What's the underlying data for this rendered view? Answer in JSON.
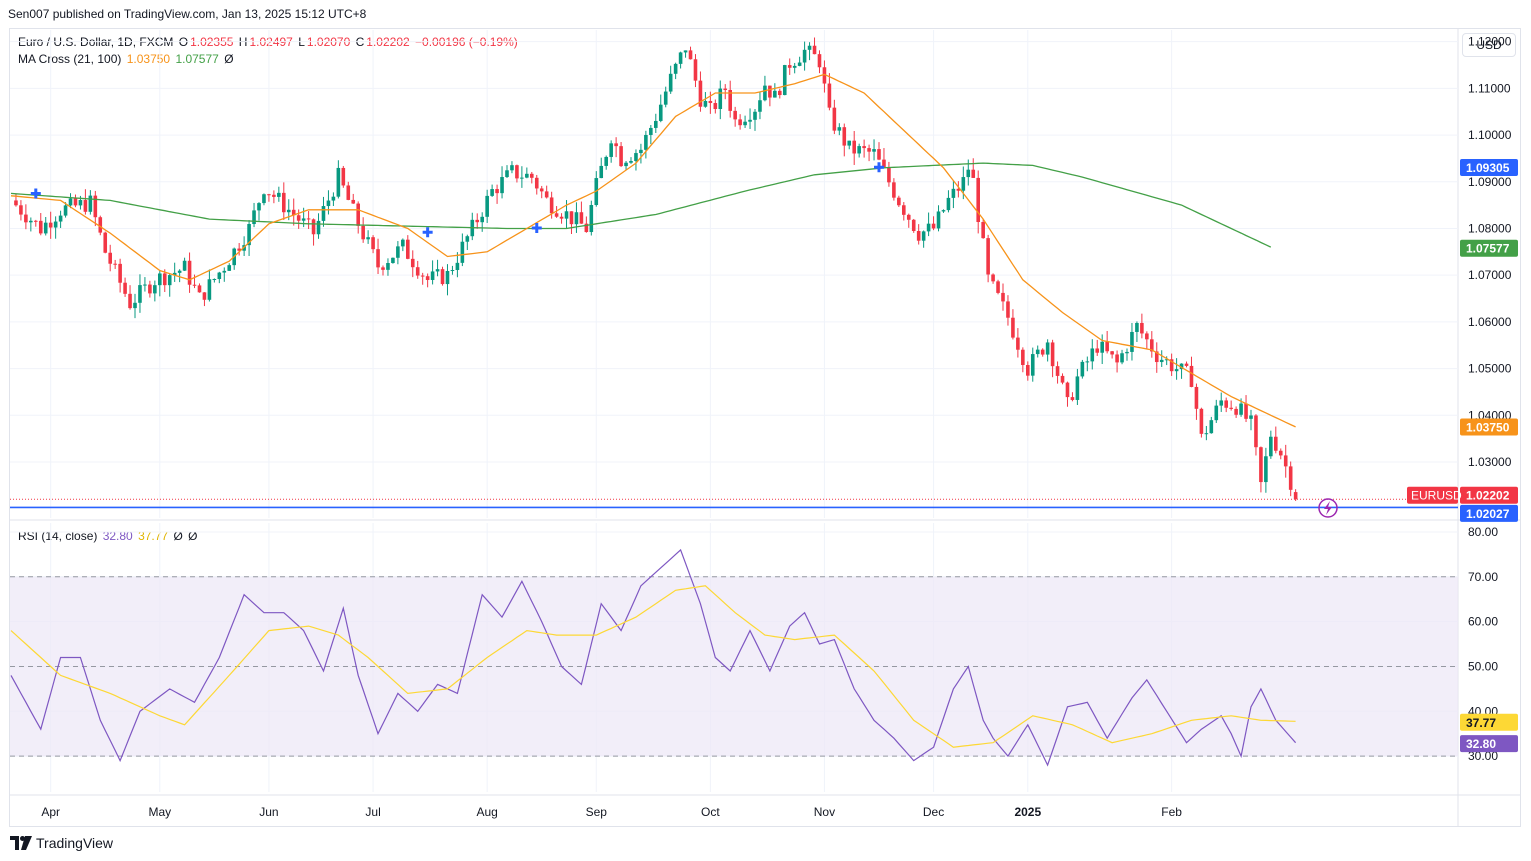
{
  "attribution": "Sen007 published on TradingView.com, Jan 13, 2025 15:12 UTC+8",
  "price_legend": {
    "symbol": "Euro / U.S. Dollar, 1D, FXCM",
    "o_label": "O",
    "o": "1.02355",
    "h_label": "H",
    "h": "1.02497",
    "l_label": "L",
    "l": "1.02070",
    "c_label": "C",
    "c": "1.02202",
    "change": "−0.00196 (−0.19%)"
  },
  "ma_legend": {
    "label": "MA Cross (21, 100)",
    "fast": "1.03750",
    "slow": "1.07577",
    "extra": "Ø"
  },
  "rsi_legend": {
    "label": "RSI (14, close)",
    "rsi": "32.80",
    "ma": "37.77",
    "extra1": "Ø",
    "extra2": "Ø"
  },
  "currency_button": "USD",
  "logo": "TradingView",
  "colors": {
    "up": "#089981",
    "down": "#f23645",
    "ma_fast": "#f7931a",
    "ma_slow": "#43a047",
    "rsi": "#7e57c2",
    "rsi_ma": "#fdd835",
    "line": "#2962ff",
    "band": "#ede7f6"
  },
  "chart_data": [
    {
      "type": "candlestick",
      "title": "Euro / U.S. Dollar, 1D, FXCM",
      "yaxis_ticks": [
        "1.12000",
        "1.11000",
        "1.10000",
        "1.09000",
        "1.08000",
        "1.07000",
        "1.06000",
        "1.05000",
        "1.04000",
        "1.03000"
      ],
      "ylim": [
        1.018,
        1.1225
      ],
      "x_ticks": [
        "Apr",
        "May",
        "Jun",
        "Jul",
        "Aug",
        "Sep",
        "Oct",
        "Nov",
        "Dec",
        "2025",
        "Feb"
      ],
      "price_labels": [
        {
          "text": "1.09305",
          "value": 1.09305,
          "color": "#2962ff"
        },
        {
          "text": "1.07577",
          "value": 1.07577,
          "color": "#43a047"
        },
        {
          "text": "1.03750",
          "value": 1.0375,
          "color": "#f7931a"
        },
        {
          "text": "1.02202",
          "value": 1.02202,
          "color": "#f23645",
          "tag": "EURUSD"
        },
        {
          "text": "1.02027",
          "value": 1.02027,
          "color": "#2962ff"
        }
      ],
      "horizontal_line": 1.02027,
      "close_line": 1.02202,
      "close_anchors": [
        [
          0,
          1.086
        ],
        [
          6,
          1.08
        ],
        [
          10,
          1.084
        ],
        [
          16,
          1.0855
        ],
        [
          19,
          1.075
        ],
        [
          24,
          1.064
        ],
        [
          29,
          1.069
        ],
        [
          35,
          1.0715
        ],
        [
          38,
          1.065
        ],
        [
          43,
          1.072
        ],
        [
          48,
          1.08
        ],
        [
          51,
          1.089
        ],
        [
          57,
          1.083
        ],
        [
          61,
          1.079
        ],
        [
          66,
          1.091
        ],
        [
          70,
          1.081
        ],
        [
          74,
          1.072
        ],
        [
          79,
          1.076
        ],
        [
          84,
          1.069
        ],
        [
          88,
          1.07
        ],
        [
          93,
          1.08
        ],
        [
          97,
          1.088
        ],
        [
          101,
          1.092
        ],
        [
          105,
          1.091
        ],
        [
          108,
          1.086
        ],
        [
          112,
          1.083
        ],
        [
          116,
          1.08
        ],
        [
          118,
          1.089
        ],
        [
          121,
          1.1
        ],
        [
          123,
          1.095
        ],
        [
          127,
          1.097
        ],
        [
          130,
          1.104
        ],
        [
          133,
          1.112
        ],
        [
          136,
          1.119
        ],
        [
          139,
          1.108
        ],
        [
          141,
          1.105
        ],
        [
          144,
          1.11
        ],
        [
          146,
          1.103
        ],
        [
          150,
          1.106
        ],
        [
          152,
          1.111
        ],
        [
          154,
          1.108
        ],
        [
          157,
          1.1155
        ],
        [
          160,
          1.118
        ],
        [
          163,
          1.116
        ],
        [
          165,
          1.104
        ],
        [
          169,
          1.097
        ],
        [
          174,
          1.096
        ],
        [
          179,
          1.086
        ],
        [
          183,
          1.079
        ],
        [
          186,
          1.08
        ],
        [
          189,
          1.086
        ],
        [
          192,
          1.09
        ],
        [
          193,
          1.093
        ],
        [
          194,
          1.09
        ],
        [
          197,
          1.069
        ],
        [
          201,
          1.061
        ],
        [
          205,
          1.05
        ],
        [
          209,
          1.056
        ],
        [
          213,
          1.042
        ],
        [
          215,
          1.048
        ],
        [
          219,
          1.055
        ],
        [
          223,
          1.051
        ],
        [
          227,
          1.059
        ],
        [
          231,
          1.053
        ],
        [
          235,
          1.05
        ],
        [
          238,
          1.048
        ],
        [
          240,
          1.035
        ],
        [
          244,
          1.043
        ],
        [
          247,
          1.042
        ],
        [
          250,
          1.038
        ],
        [
          252,
          1.025
        ],
        [
          254,
          1.036
        ],
        [
          256,
          1.032
        ],
        [
          258,
          1.026
        ],
        [
          259,
          1.022
        ]
      ],
      "ma_fast_anchors": [
        [
          0,
          1.087
        ],
        [
          10,
          1.086
        ],
        [
          20,
          1.079
        ],
        [
          30,
          1.071
        ],
        [
          36,
          1.069
        ],
        [
          44,
          1.073
        ],
        [
          52,
          1.081
        ],
        [
          60,
          1.084
        ],
        [
          70,
          1.084
        ],
        [
          80,
          1.08
        ],
        [
          88,
          1.074
        ],
        [
          96,
          1.075
        ],
        [
          104,
          1.08
        ],
        [
          112,
          1.085
        ],
        [
          118,
          1.088
        ],
        [
          126,
          1.094
        ],
        [
          134,
          1.104
        ],
        [
          142,
          1.109
        ],
        [
          150,
          1.109
        ],
        [
          158,
          1.111
        ],
        [
          164,
          1.113
        ],
        [
          172,
          1.109
        ],
        [
          180,
          1.101
        ],
        [
          188,
          1.093
        ],
        [
          196,
          1.082
        ],
        [
          204,
          1.069
        ],
        [
          212,
          1.062
        ],
        [
          220,
          1.056
        ],
        [
          230,
          1.054
        ],
        [
          238,
          1.049
        ],
        [
          246,
          1.044
        ],
        [
          254,
          1.04
        ],
        [
          259,
          1.0375
        ]
      ],
      "ma_slow_anchors": [
        [
          0,
          1.0875
        ],
        [
          20,
          1.086
        ],
        [
          40,
          1.082
        ],
        [
          60,
          1.081
        ],
        [
          80,
          1.0805
        ],
        [
          100,
          1.08
        ],
        [
          112,
          1.08
        ],
        [
          130,
          1.083
        ],
        [
          148,
          1.088
        ],
        [
          162,
          1.0915
        ],
        [
          176,
          1.093
        ],
        [
          186,
          1.0935
        ],
        [
          196,
          1.094
        ],
        [
          206,
          1.0935
        ],
        [
          216,
          1.091
        ],
        [
          226,
          1.088
        ],
        [
          236,
          1.085
        ],
        [
          246,
          1.08
        ],
        [
          254,
          1.076
        ]
      ],
      "cross_markers": [
        [
          5,
          1.0875
        ],
        [
          84,
          1.0792
        ],
        [
          106,
          1.0801
        ],
        [
          175,
          1.0931
        ]
      ]
    },
    {
      "type": "line",
      "title": "RSI (14, close)",
      "ylim": [
        22,
        82
      ],
      "yaxis_ticks": [
        "80.00",
        "70.00",
        "60.00",
        "50.00",
        "40.00",
        "30.00"
      ],
      "bands": [
        70,
        50,
        30
      ],
      "series": [
        {
          "name": "RSI",
          "color": "#7e57c2",
          "anchors": [
            [
              0,
              48
            ],
            [
              6,
              36
            ],
            [
              10,
              52
            ],
            [
              14,
              52
            ],
            [
              18,
              38
            ],
            [
              22,
              29
            ],
            [
              26,
              40
            ],
            [
              32,
              45
            ],
            [
              37,
              42
            ],
            [
              42,
              52
            ],
            [
              47,
              66
            ],
            [
              51,
              62
            ],
            [
              55,
              62
            ],
            [
              59,
              58
            ],
            [
              63,
              49
            ],
            [
              67,
              63
            ],
            [
              70,
              48
            ],
            [
              74,
              35
            ],
            [
              78,
              44
            ],
            [
              82,
              40
            ],
            [
              86,
              46
            ],
            [
              90,
              44
            ],
            [
              95,
              66
            ],
            [
              99,
              61
            ],
            [
              103,
              69
            ],
            [
              107,
              60
            ],
            [
              111,
              50
            ],
            [
              115,
              46
            ],
            [
              119,
              64
            ],
            [
              123,
              58
            ],
            [
              127,
              68
            ],
            [
              131,
              72
            ],
            [
              135,
              76
            ],
            [
              139,
              64
            ],
            [
              142,
              52
            ],
            [
              145,
              49
            ],
            [
              149,
              58
            ],
            [
              153,
              49
            ],
            [
              157,
              59
            ],
            [
              160,
              62
            ],
            [
              163,
              55
            ],
            [
              166,
              56
            ],
            [
              170,
              45
            ],
            [
              174,
              38
            ],
            [
              178,
              34
            ],
            [
              182,
              29
            ],
            [
              186,
              32
            ],
            [
              190,
              45
            ],
            [
              193,
              50
            ],
            [
              196,
              38
            ],
            [
              198,
              34
            ],
            [
              201,
              30
            ],
            [
              205,
              37
            ],
            [
              209,
              28
            ],
            [
              213,
              41
            ],
            [
              217,
              42
            ],
            [
              221,
              34
            ],
            [
              226,
              43
            ],
            [
              229,
              47
            ],
            [
              233,
              40
            ],
            [
              237,
              33
            ],
            [
              240,
              36
            ],
            [
              244,
              39
            ],
            [
              246,
              35
            ],
            [
              248,
              30
            ],
            [
              250,
              41
            ],
            [
              252,
              45
            ],
            [
              255,
              38
            ],
            [
              259,
              33
            ]
          ]
        },
        {
          "name": "RSI MA",
          "color": "#fdd835",
          "anchors": [
            [
              0,
              58
            ],
            [
              10,
              48
            ],
            [
              20,
              44
            ],
            [
              30,
              39
            ],
            [
              35,
              37
            ],
            [
              44,
              48
            ],
            [
              52,
              58
            ],
            [
              60,
              59
            ],
            [
              66,
              57
            ],
            [
              72,
              52
            ],
            [
              80,
              44
            ],
            [
              88,
              45
            ],
            [
              96,
              52
            ],
            [
              104,
              58
            ],
            [
              110,
              57
            ],
            [
              118,
              57
            ],
            [
              126,
              61
            ],
            [
              134,
              67
            ],
            [
              140,
              68
            ],
            [
              146,
              62
            ],
            [
              152,
              57
            ],
            [
              158,
              56
            ],
            [
              166,
              57
            ],
            [
              174,
              49
            ],
            [
              182,
              38
            ],
            [
              190,
              32
            ],
            [
              198,
              33
            ],
            [
              206,
              39
            ],
            [
              214,
              37
            ],
            [
              222,
              33
            ],
            [
              230,
              35
            ],
            [
              238,
              38
            ],
            [
              246,
              39
            ],
            [
              252,
              38
            ],
            [
              259,
              37.77
            ]
          ]
        }
      ],
      "value_labels": [
        {
          "text": "37.77",
          "value": 37.77,
          "color": "#fdd835"
        },
        {
          "text": "32.80",
          "value": 32.8,
          "color": "#7e57c2"
        }
      ]
    }
  ]
}
